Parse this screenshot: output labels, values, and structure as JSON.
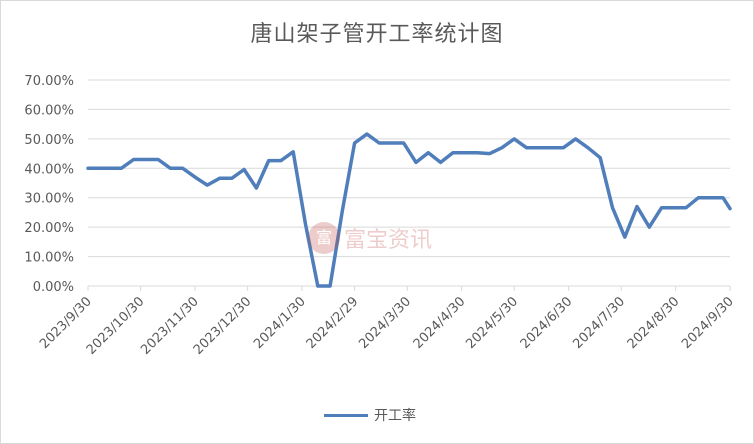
{
  "chart_data": {
    "type": "line",
    "title": "唐山架子管开工率统计图",
    "ylim": [
      0,
      0.7
    ],
    "y_ticks": [
      "0.00%",
      "10.00%",
      "20.00%",
      "30.00%",
      "40.00%",
      "50.00%",
      "60.00%",
      "70.00%"
    ],
    "x_ticks": [
      "2023/9/30",
      "2023/10/30",
      "2023/11/30",
      "2023/12/30",
      "2024/1/30",
      "2024/2/29",
      "2024/3/30",
      "2024/4/30",
      "2024/5/30",
      "2024/6/30",
      "2024/7/30",
      "2024/8/30",
      "2024/9/30"
    ],
    "x_range": [
      "2023/9/30",
      "2024/9/30"
    ],
    "grid": true,
    "legend_position": "bottom",
    "series": [
      {
        "name": "开工率",
        "color": "#4f7ebb",
        "points": [
          [
            "2023/9/30",
            0.4
          ],
          [
            "2023/10/5",
            0.4
          ],
          [
            "2023/10/12",
            0.4
          ],
          [
            "2023/10/19",
            0.4
          ],
          [
            "2023/10/26",
            0.43
          ],
          [
            "2023/11/2",
            0.43
          ],
          [
            "2023/11/9",
            0.43
          ],
          [
            "2023/11/16",
            0.4
          ],
          [
            "2023/11/23",
            0.4
          ],
          [
            "2023/11/30",
            0.37
          ],
          [
            "2023/12/7",
            0.343
          ],
          [
            "2023/12/14",
            0.366
          ],
          [
            "2023/12/21",
            0.366
          ],
          [
            "2023/12/28",
            0.396
          ],
          [
            "2024/1/4",
            0.333
          ],
          [
            "2024/1/11",
            0.426
          ],
          [
            "2024/1/18",
            0.426
          ],
          [
            "2024/1/25",
            0.456
          ],
          [
            "2024/2/1",
            0.21
          ],
          [
            "2024/2/8",
            0.0
          ],
          [
            "2024/2/15",
            0.0
          ],
          [
            "2024/2/22",
            0.255
          ],
          [
            "2024/2/29",
            0.486
          ],
          [
            "2024/3/7",
            0.516
          ],
          [
            "2024/3/14",
            0.486
          ],
          [
            "2024/3/21",
            0.486
          ],
          [
            "2024/3/28",
            0.486
          ],
          [
            "2024/4/4",
            0.42
          ],
          [
            "2024/4/11",
            0.453
          ],
          [
            "2024/4/18",
            0.42
          ],
          [
            "2024/4/25",
            0.453
          ],
          [
            "2024/5/2",
            0.453
          ],
          [
            "2024/5/9",
            0.453
          ],
          [
            "2024/5/16",
            0.45
          ],
          [
            "2024/5/23",
            0.47
          ],
          [
            "2024/5/30",
            0.5
          ],
          [
            "2024/6/6",
            0.47
          ],
          [
            "2024/6/13",
            0.47
          ],
          [
            "2024/6/20",
            0.47
          ],
          [
            "2024/6/27",
            0.47
          ],
          [
            "2024/7/4",
            0.5
          ],
          [
            "2024/7/11",
            0.47
          ],
          [
            "2024/7/18",
            0.436
          ],
          [
            "2024/7/25",
            0.266
          ],
          [
            "2024/8/1",
            0.166
          ],
          [
            "2024/8/8",
            0.27
          ],
          [
            "2024/8/15",
            0.2
          ],
          [
            "2024/8/22",
            0.266
          ],
          [
            "2024/8/29",
            0.266
          ],
          [
            "2024/9/5",
            0.266
          ],
          [
            "2024/9/12",
            0.3
          ],
          [
            "2024/9/19",
            0.3
          ],
          [
            "2024/9/26",
            0.3
          ],
          [
            "2024/9/30",
            0.263
          ]
        ]
      }
    ]
  },
  "watermark": {
    "logo_glyph": "富",
    "text": "富宝资讯"
  }
}
